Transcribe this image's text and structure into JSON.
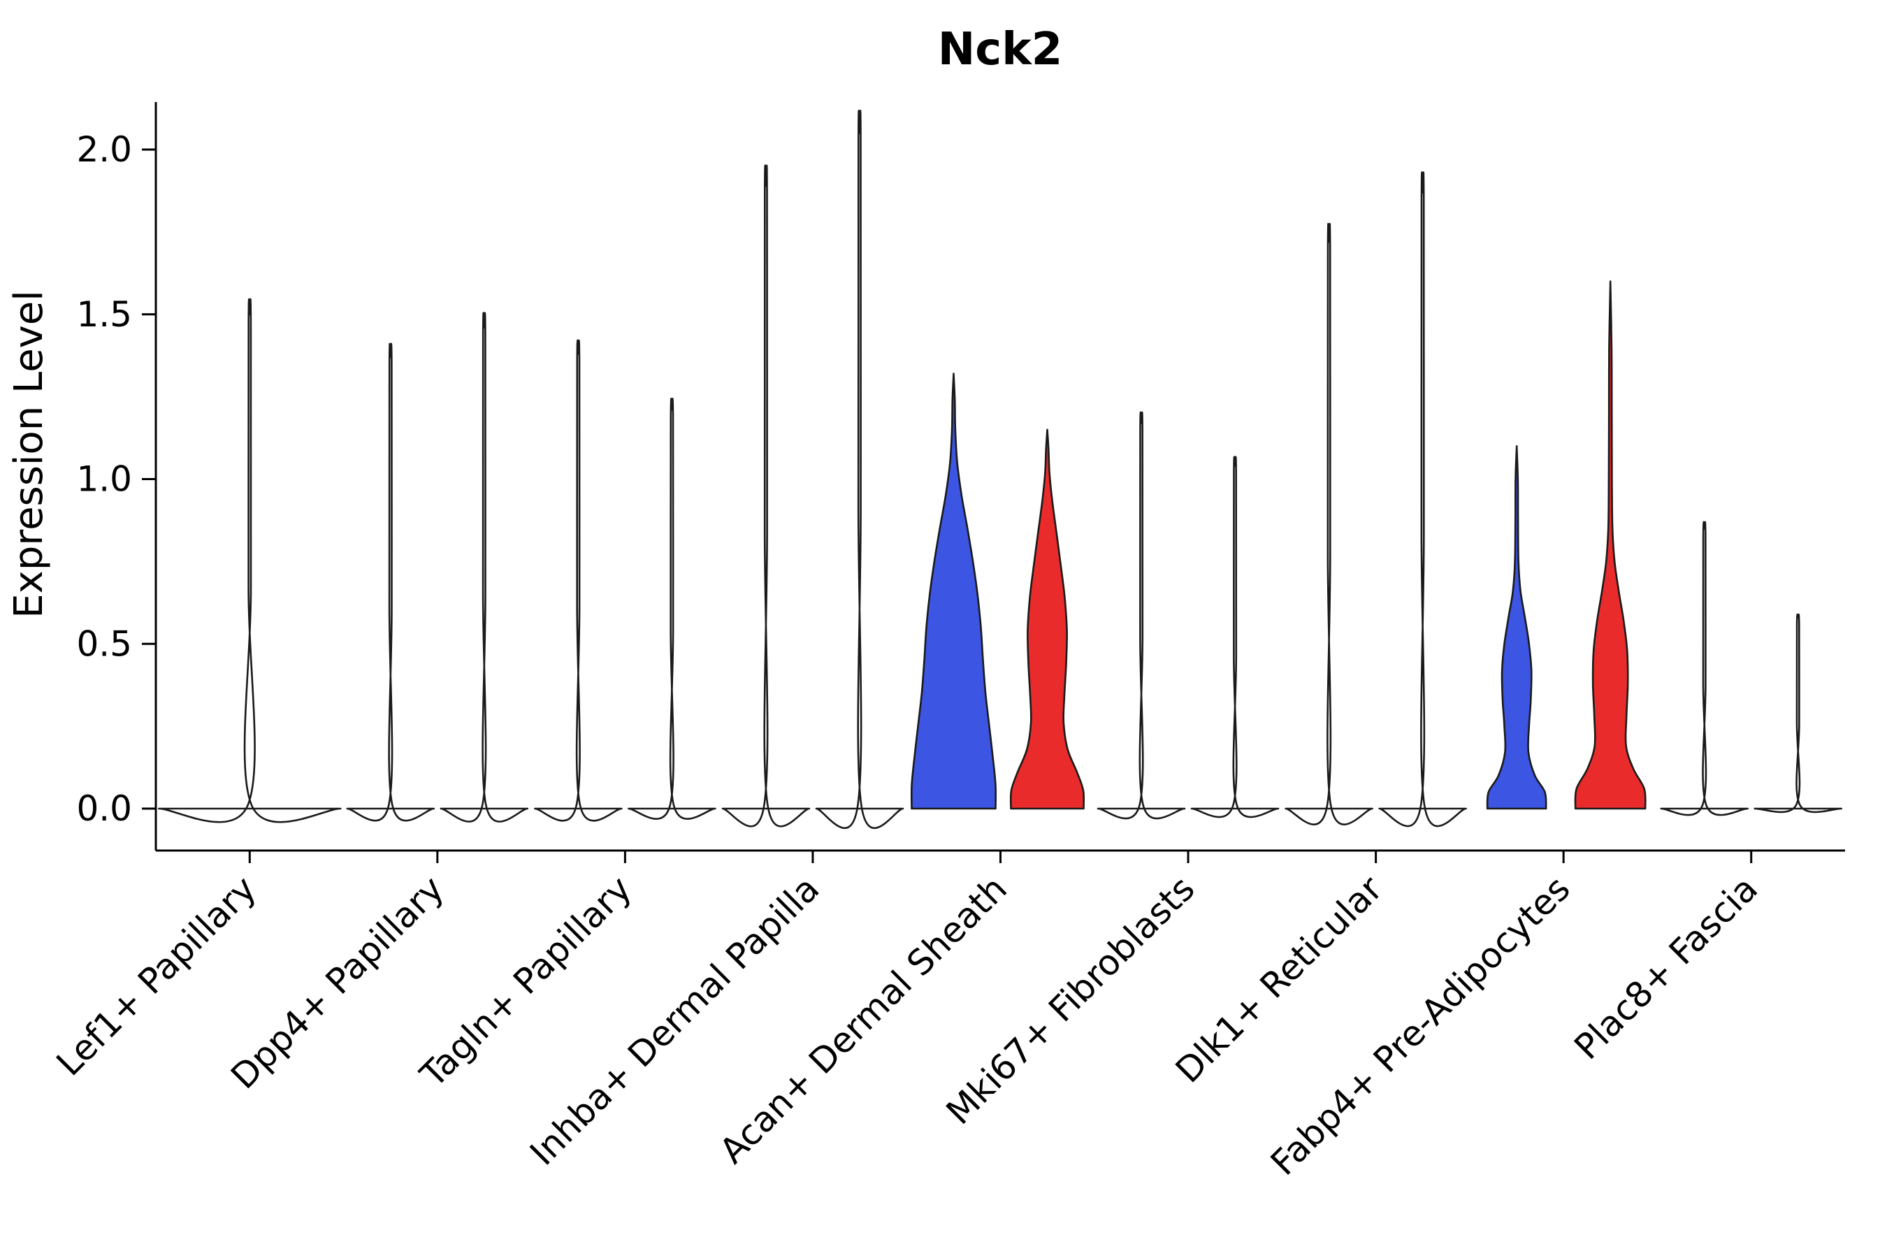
{
  "title": "Nck2",
  "chart_data": {
    "type": "violin",
    "title": "Nck2",
    "xlabel": "",
    "ylabel": "Expression Level",
    "ylim": [
      -0.13,
      2.15
    ],
    "yticks": [
      "0.0",
      "0.5",
      "1.0",
      "1.5",
      "2.0"
    ],
    "ytick_values": [
      0.0,
      0.5,
      1.0,
      1.5,
      2.0
    ],
    "grid": false,
    "legend": "none",
    "colors": {
      "blue": "#3C55E2",
      "red": "#EA2B2B",
      "stroke": "#1a1a1a"
    },
    "categories": [
      "Lef1+ Papillary",
      "Dpp4+ Papillary",
      "Tagln+ Papillary",
      "Inhba+ Dermal Papilla",
      "Acan+ Dermal Sheath",
      "Mki67+ Fibroblasts",
      "Dlk1+ Reticular",
      "Fabp4+ Pre-Adipocytes",
      "Plac8+ Fascia"
    ],
    "groups": [
      {
        "label": "Lef1+ Papillary",
        "violins": [
          {
            "side": 0,
            "series": "single",
            "kind": "spike",
            "max": 1.5,
            "base_halfwidth": 130
          }
        ]
      },
      {
        "label": "Dpp4+ Papillary",
        "violins": [
          {
            "side": -1,
            "series": "blue",
            "kind": "spike",
            "max": 1.37,
            "base_halfwidth": 62
          },
          {
            "side": 1,
            "series": "red",
            "kind": "spike",
            "max": 1.46,
            "base_halfwidth": 62
          }
        ]
      },
      {
        "label": "Tagln+ Papillary",
        "violins": [
          {
            "side": -1,
            "series": "blue",
            "kind": "spike",
            "max": 1.38,
            "base_halfwidth": 62
          },
          {
            "side": 1,
            "series": "red",
            "kind": "spike",
            "max": 1.21,
            "base_halfwidth": 62
          }
        ]
      },
      {
        "label": "Inhba+ Dermal Papilla",
        "violins": [
          {
            "side": -1,
            "series": "blue",
            "kind": "spike",
            "max": 1.89,
            "base_halfwidth": 62
          },
          {
            "side": 1,
            "series": "red",
            "kind": "spike",
            "max": 2.05,
            "base_halfwidth": 62
          }
        ]
      },
      {
        "label": "Acan+ Dermal Sheath",
        "violins": [
          {
            "side": -1,
            "series": "blue",
            "kind": "body",
            "max": 1.32,
            "max_halfwidth": 60,
            "profile": [
              [
                0,
                1.0
              ],
              [
                0.07,
                1.0
              ],
              [
                0.15,
                0.94
              ],
              [
                0.25,
                0.85
              ],
              [
                0.35,
                0.76
              ],
              [
                0.45,
                0.7
              ],
              [
                0.55,
                0.65
              ],
              [
                0.65,
                0.57
              ],
              [
                0.75,
                0.46
              ],
              [
                0.85,
                0.33
              ],
              [
                0.95,
                0.19
              ],
              [
                1.05,
                0.085
              ],
              [
                1.15,
                0.04
              ],
              [
                1.24,
                0.028
              ],
              [
                1.32,
                0
              ]
            ]
          },
          {
            "side": 1,
            "series": "red",
            "kind": "body",
            "max": 1.15,
            "max_halfwidth": 52,
            "profile": [
              [
                0,
                1.0
              ],
              [
                0.055,
                0.99
              ],
              [
                0.11,
                0.82
              ],
              [
                0.18,
                0.56
              ],
              [
                0.26,
                0.45
              ],
              [
                0.34,
                0.47
              ],
              [
                0.44,
                0.52
              ],
              [
                0.54,
                0.54
              ],
              [
                0.64,
                0.48
              ],
              [
                0.74,
                0.37
              ],
              [
                0.84,
                0.25
              ],
              [
                0.94,
                0.13
              ],
              [
                1.02,
                0.06
              ],
              [
                1.09,
                0.035
              ],
              [
                1.15,
                0
              ]
            ]
          }
        ]
      },
      {
        "label": "Mki67+ Fibroblasts",
        "violins": [
          {
            "side": -1,
            "series": "blue",
            "kind": "spike",
            "max": 1.17,
            "base_halfwidth": 62
          },
          {
            "side": 1,
            "series": "red",
            "kind": "spike",
            "max": 1.04,
            "base_halfwidth": 62
          }
        ]
      },
      {
        "label": "Dlk1+ Reticular",
        "violins": [
          {
            "side": -1,
            "series": "blue",
            "kind": "spike",
            "max": 1.72,
            "base_halfwidth": 62
          },
          {
            "side": 1,
            "series": "red",
            "kind": "spike",
            "max": 1.87,
            "base_halfwidth": 62
          }
        ]
      },
      {
        "label": "Fabp4+ Pre-Adipocytes",
        "violins": [
          {
            "side": -1,
            "series": "blue",
            "kind": "body",
            "max": 1.1,
            "max_halfwidth": 42,
            "profile": [
              [
                0,
                1.0
              ],
              [
                0.05,
                0.96
              ],
              [
                0.1,
                0.62
              ],
              [
                0.17,
                0.4
              ],
              [
                0.25,
                0.42
              ],
              [
                0.33,
                0.48
              ],
              [
                0.42,
                0.5
              ],
              [
                0.5,
                0.42
              ],
              [
                0.58,
                0.28
              ],
              [
                0.66,
                0.13
              ],
              [
                0.75,
                0.06
              ],
              [
                0.88,
                0.045
              ],
              [
                1.0,
                0.04
              ],
              [
                1.1,
                0
              ]
            ]
          },
          {
            "side": 1,
            "series": "red",
            "kind": "body",
            "max": 1.6,
            "max_halfwidth": 50,
            "profile": [
              [
                0,
                1.0
              ],
              [
                0.06,
                0.97
              ],
              [
                0.12,
                0.66
              ],
              [
                0.19,
                0.45
              ],
              [
                0.28,
                0.46
              ],
              [
                0.38,
                0.5
              ],
              [
                0.48,
                0.48
              ],
              [
                0.57,
                0.38
              ],
              [
                0.66,
                0.24
              ],
              [
                0.75,
                0.12
              ],
              [
                0.85,
                0.06
              ],
              [
                1.0,
                0.045
              ],
              [
                1.2,
                0.04
              ],
              [
                1.4,
                0.035
              ],
              [
                1.6,
                0
              ]
            ]
          }
        ]
      },
      {
        "label": "Plac8+ Fascia",
        "violins": [
          {
            "side": -1,
            "series": "blue",
            "kind": "spike",
            "max": 0.85,
            "base_halfwidth": 62
          },
          {
            "side": 1,
            "series": "red",
            "kind": "spike",
            "max": 0.58,
            "base_halfwidth": 62
          }
        ]
      }
    ]
  }
}
